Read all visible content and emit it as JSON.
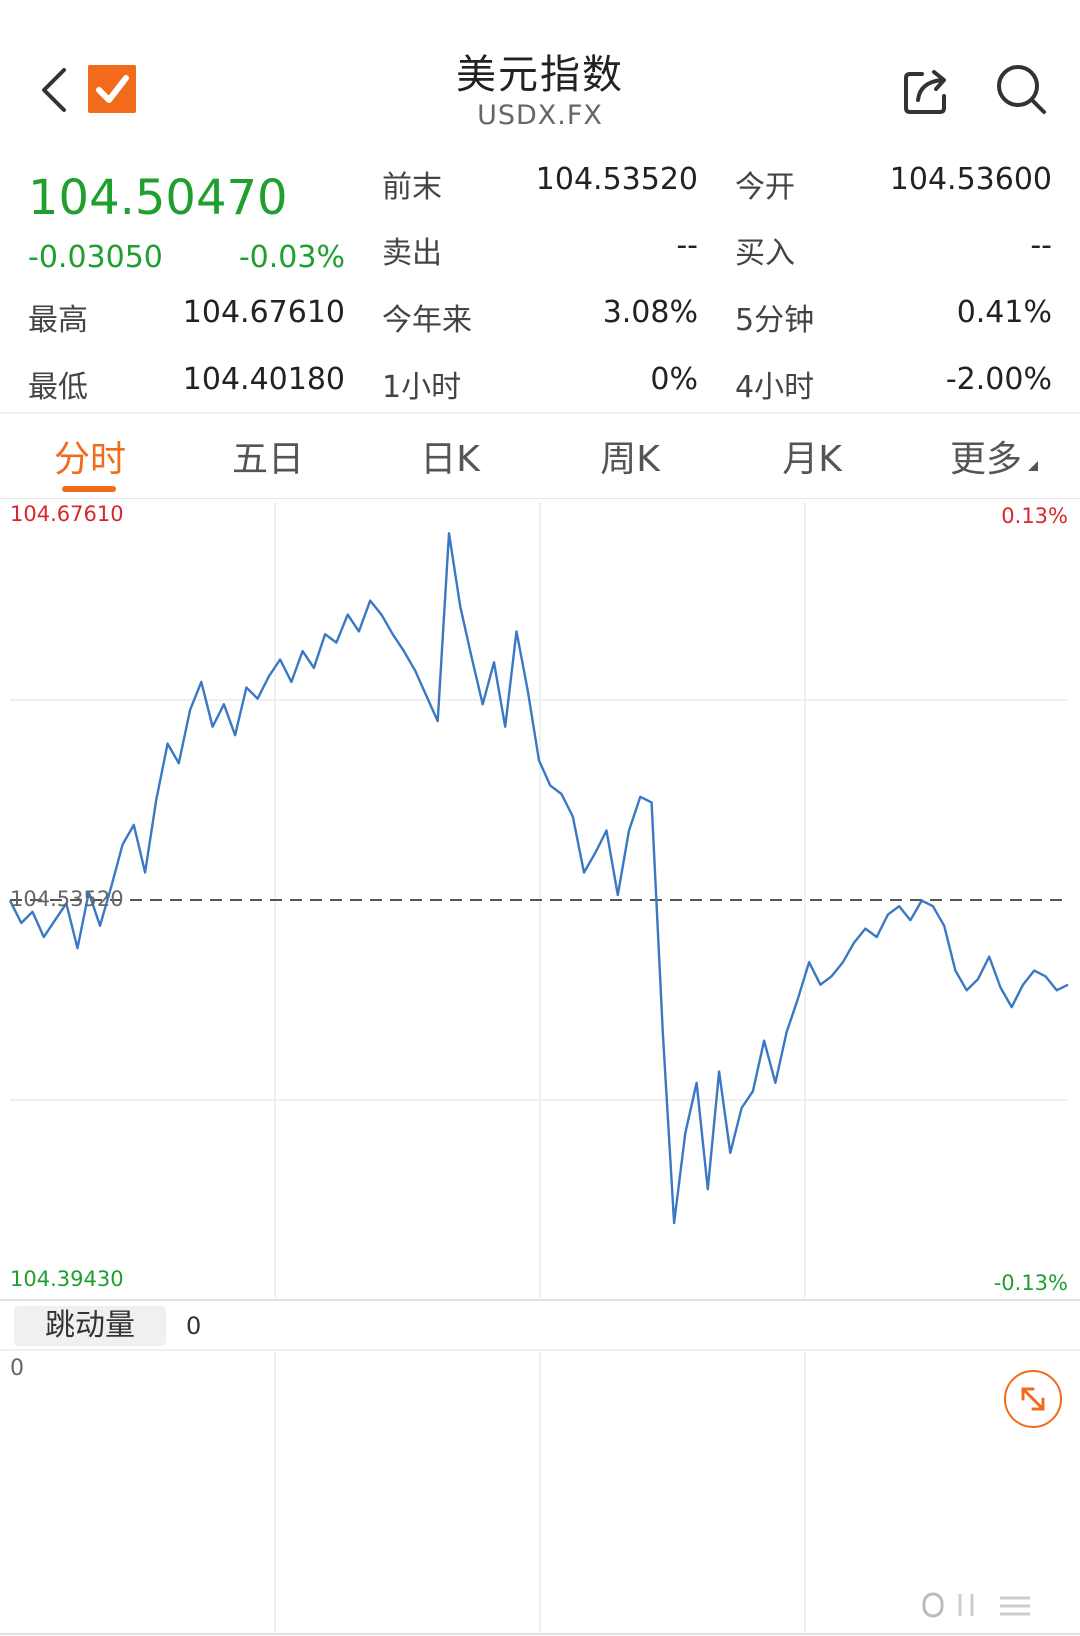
{
  "header": {
    "title": "美元指数",
    "subtitle": "USDX.FX"
  },
  "quote": {
    "price": "104.50470",
    "change": "-0.03050",
    "change_pct": "-0.03%",
    "high_label": "最高",
    "high_value": "104.67610",
    "low_label": "最低",
    "low_value": "104.40180",
    "prev_close_label": "前末",
    "prev_close_value": "104.53520",
    "open_label": "今开",
    "open_value": "104.53600",
    "sell_label": "卖出",
    "sell_value": "--",
    "buy_label": "买入",
    "buy_value": "--",
    "ytd_label": "今年来",
    "ytd_value": "3.08%",
    "min5_label": "5分钟",
    "min5_value": "0.41%",
    "hour1_label": "1小时",
    "hour1_value": "0%",
    "hour4_label": "4小时",
    "hour4_value": "-2.00%"
  },
  "tabs": [
    {
      "label": "分时",
      "active": true
    },
    {
      "label": "五日",
      "active": false
    },
    {
      "label": "日K",
      "active": false
    },
    {
      "label": "周K",
      "active": false
    },
    {
      "label": "月K",
      "active": false
    },
    {
      "label": "更多",
      "active": false
    }
  ],
  "chart_data": {
    "type": "line",
    "y_top_label": "104.67610",
    "y_bottom_label": "104.39430",
    "y_ref_label": "104.53520",
    "pct_top_label": "0.13%",
    "pct_bottom_label": "-0.13%",
    "ylim": [
      104.3943,
      104.6761
    ],
    "reference": 104.5352,
    "line_color": "#3a78c4",
    "grid": true,
    "series": [
      {
        "values": [
          104.535,
          104.527,
          104.531,
          104.522,
          104.528,
          104.534,
          104.518,
          104.538,
          104.526,
          104.54,
          104.555,
          104.562,
          104.545,
          104.571,
          104.591,
          104.584,
          104.603,
          104.613,
          104.597,
          104.605,
          104.594,
          104.611,
          104.607,
          104.615,
          104.621,
          104.613,
          104.624,
          104.618,
          104.63,
          104.627,
          104.637,
          104.631,
          104.642,
          104.637,
          104.63,
          104.624,
          104.617,
          104.608,
          104.599,
          104.666,
          104.64,
          104.622,
          104.605,
          104.62,
          104.597,
          104.631,
          104.61,
          104.585,
          104.576,
          104.573,
          104.565,
          104.545,
          104.552,
          104.56,
          104.537,
          104.56,
          104.572,
          104.57,
          104.488,
          104.42,
          104.452,
          104.47,
          104.432,
          104.474,
          104.445,
          104.461,
          104.467,
          104.485,
          104.47,
          104.488,
          104.5,
          104.513,
          104.505,
          104.508,
          104.513,
          104.52,
          104.525,
          104.522,
          104.53,
          104.533,
          104.528,
          104.535,
          104.533,
          104.526,
          104.51,
          104.503,
          104.507,
          104.515,
          104.504,
          104.497,
          104.505,
          104.51,
          104.508,
          104.503,
          104.505
        ]
      }
    ]
  },
  "volume": {
    "tab_label": "跳动量",
    "value": "0",
    "axis_zero": "0"
  },
  "colors": {
    "accent": "#f26a1b",
    "up": "#d9262c",
    "down": "#1e9f2e",
    "line": "#3a78c4"
  },
  "icons": [
    "back-chevron",
    "check-icon",
    "share-icon",
    "search-icon",
    "expand-icon"
  ]
}
